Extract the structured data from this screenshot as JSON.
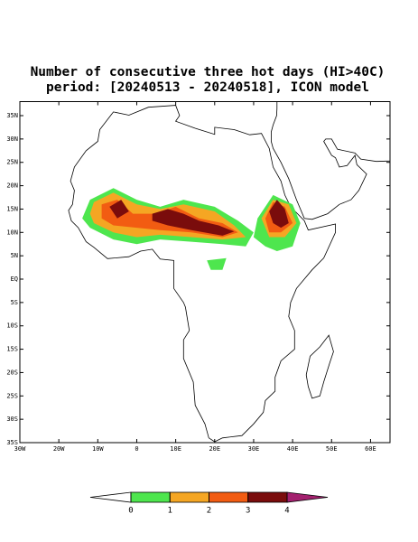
{
  "title_lines": [
    "Number of consecutive three hot days (HI>40C)",
    "period: [20240513 - 20240518], ICON model"
  ],
  "map": {
    "xlim": [
      -30,
      65
    ],
    "ylim": [
      -35,
      38
    ],
    "xticks": [
      {
        "value": -30,
        "label": "30W"
      },
      {
        "value": -20,
        "label": "20W"
      },
      {
        "value": -10,
        "label": "10W"
      },
      0,
      {
        "value": 10,
        "label": "10E"
      },
      {
        "value": 20,
        "label": "20E"
      },
      {
        "value": 30,
        "label": "30E"
      },
      {
        "value": 40,
        "label": "40E"
      },
      {
        "value": 50,
        "label": "50E"
      },
      {
        "value": 60,
        "label": "60E"
      }
    ],
    "yticks": [
      {
        "value": 35,
        "label": "35N"
      },
      {
        "value": 30,
        "label": "30N"
      },
      {
        "value": 25,
        "label": "25N"
      },
      {
        "value": 20,
        "label": "20N"
      },
      {
        "value": 15,
        "label": "15N"
      },
      {
        "value": 10,
        "label": "10N"
      },
      {
        "value": 5,
        "label": "5N"
      },
      {
        "value": 0,
        "label": "EQ"
      },
      {
        "value": -5,
        "label": "5S"
      },
      {
        "value": -10,
        "label": "10S"
      },
      {
        "value": -15,
        "label": "15S"
      },
      {
        "value": -20,
        "label": "20S"
      },
      {
        "value": -25,
        "label": "25S"
      },
      {
        "value": -30,
        "label": "30S"
      },
      {
        "value": -35,
        "label": "35S"
      }
    ]
  },
  "colorbar": {
    "levels": [
      0,
      1,
      2,
      3,
      4
    ],
    "colors": [
      "#ffffff",
      "#4ee64e",
      "#f5a623",
      "#f25c12",
      "#7a0c0c",
      "#a3206e"
    ]
  }
}
